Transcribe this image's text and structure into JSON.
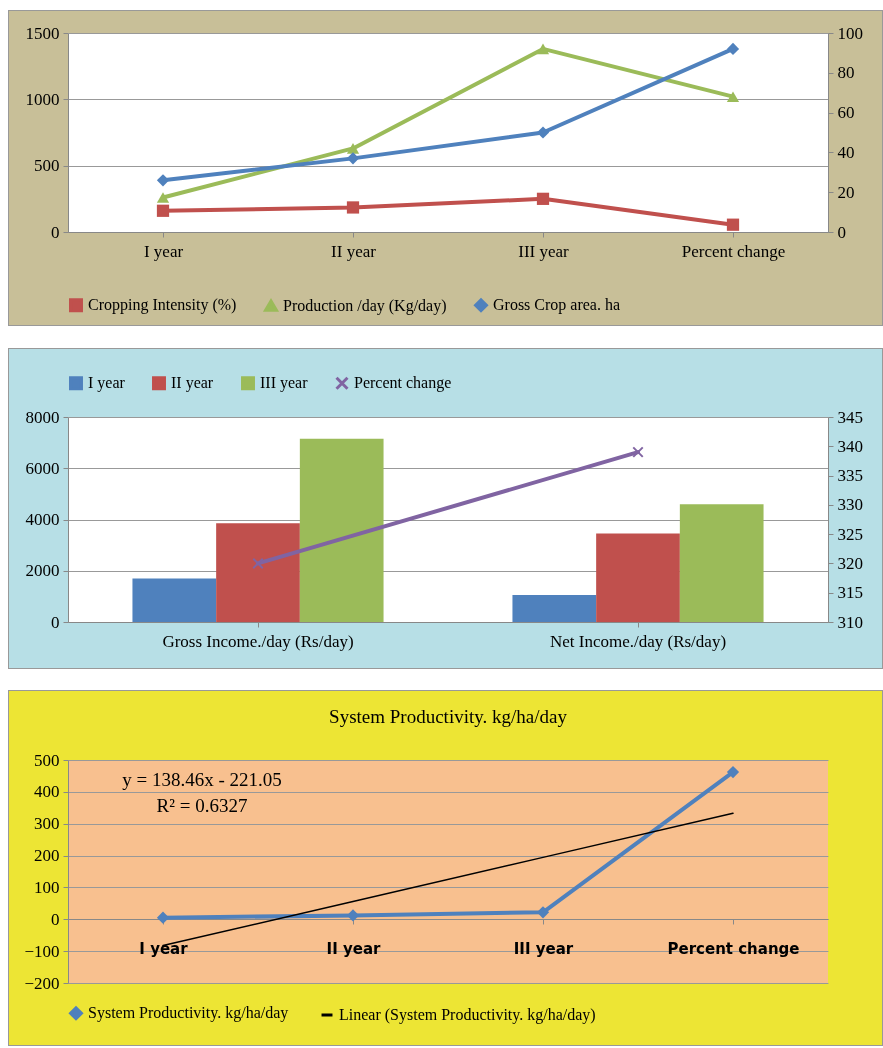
{
  "chart_data": [
    {
      "type": "line",
      "categories": [
        "I year",
        "II year",
        "III year",
        "Percent change"
      ],
      "series": [
        {
          "name": "Cropping Intensity (%)",
          "color": "#c0504d",
          "marker": "square",
          "values": [
            160,
            185,
            250,
            55
          ]
        },
        {
          "name": "Production /day (Kg/day)",
          "color": "#9bbb59",
          "marker": "triangle",
          "values": [
            260,
            630,
            1380,
            1020
          ]
        },
        {
          "name": "Gross Crop area. ha",
          "color": "#4f81bd",
          "marker": "diamond",
          "axis": "y2",
          "values": [
            26,
            37,
            50,
            92
          ]
        }
      ],
      "ylim": [
        0,
        1500
      ],
      "yticks": [
        0,
        500,
        1000,
        1500
      ],
      "y2lim": [
        0,
        100
      ],
      "y2ticks": [
        0,
        20,
        40,
        60,
        80,
        100
      ],
      "grid": "y",
      "legend": "bottom"
    },
    {
      "type": "bar",
      "categories": [
        "Gross Income./day (Rs/day)",
        "Net Income./day (Rs/day)"
      ],
      "series": [
        {
          "name": "I year",
          "color": "#4f81bd",
          "values": [
            1700,
            1050
          ]
        },
        {
          "name": "II year",
          "color": "#c0504d",
          "values": [
            3850,
            3450
          ]
        },
        {
          "name": "III year",
          "color": "#9bbb59",
          "values": [
            7150,
            4600
          ]
        },
        {
          "name": "Percent change",
          "color": "#8064a2",
          "type": "line",
          "marker": "cross",
          "axis": "y2",
          "values": [
            320,
            339
          ]
        }
      ],
      "ylim": [
        0,
        8000
      ],
      "yticks": [
        0,
        2000,
        4000,
        6000,
        8000
      ],
      "y2lim": [
        310,
        345
      ],
      "y2ticks": [
        310,
        315,
        320,
        325,
        330,
        335,
        340,
        345
      ],
      "grid": "y",
      "legend": "top"
    },
    {
      "type": "line",
      "title": "System Productivity.  kg/ha/day",
      "categories": [
        "I year",
        "II year",
        "III year",
        "Percent change"
      ],
      "series": [
        {
          "name": "System Productivity.  kg/ha/day",
          "color": "#4f81bd",
          "marker": "diamond",
          "values": [
            5,
            12,
            22,
            462
          ]
        },
        {
          "name": "Linear (System Productivity.  kg/ha/day)",
          "color": "#000000",
          "marker": "none",
          "values": [
            -82.6,
            55.9,
            194.3,
            332.8
          ]
        }
      ],
      "ylim": [
        -200,
        500
      ],
      "yticks": [
        -200,
        -100,
        0,
        100,
        200,
        300,
        400,
        500
      ],
      "grid": "y",
      "legend": "bottom",
      "annotations": [
        "y = 138.46x - 221.05",
        "R² = 0.6327"
      ]
    }
  ]
}
